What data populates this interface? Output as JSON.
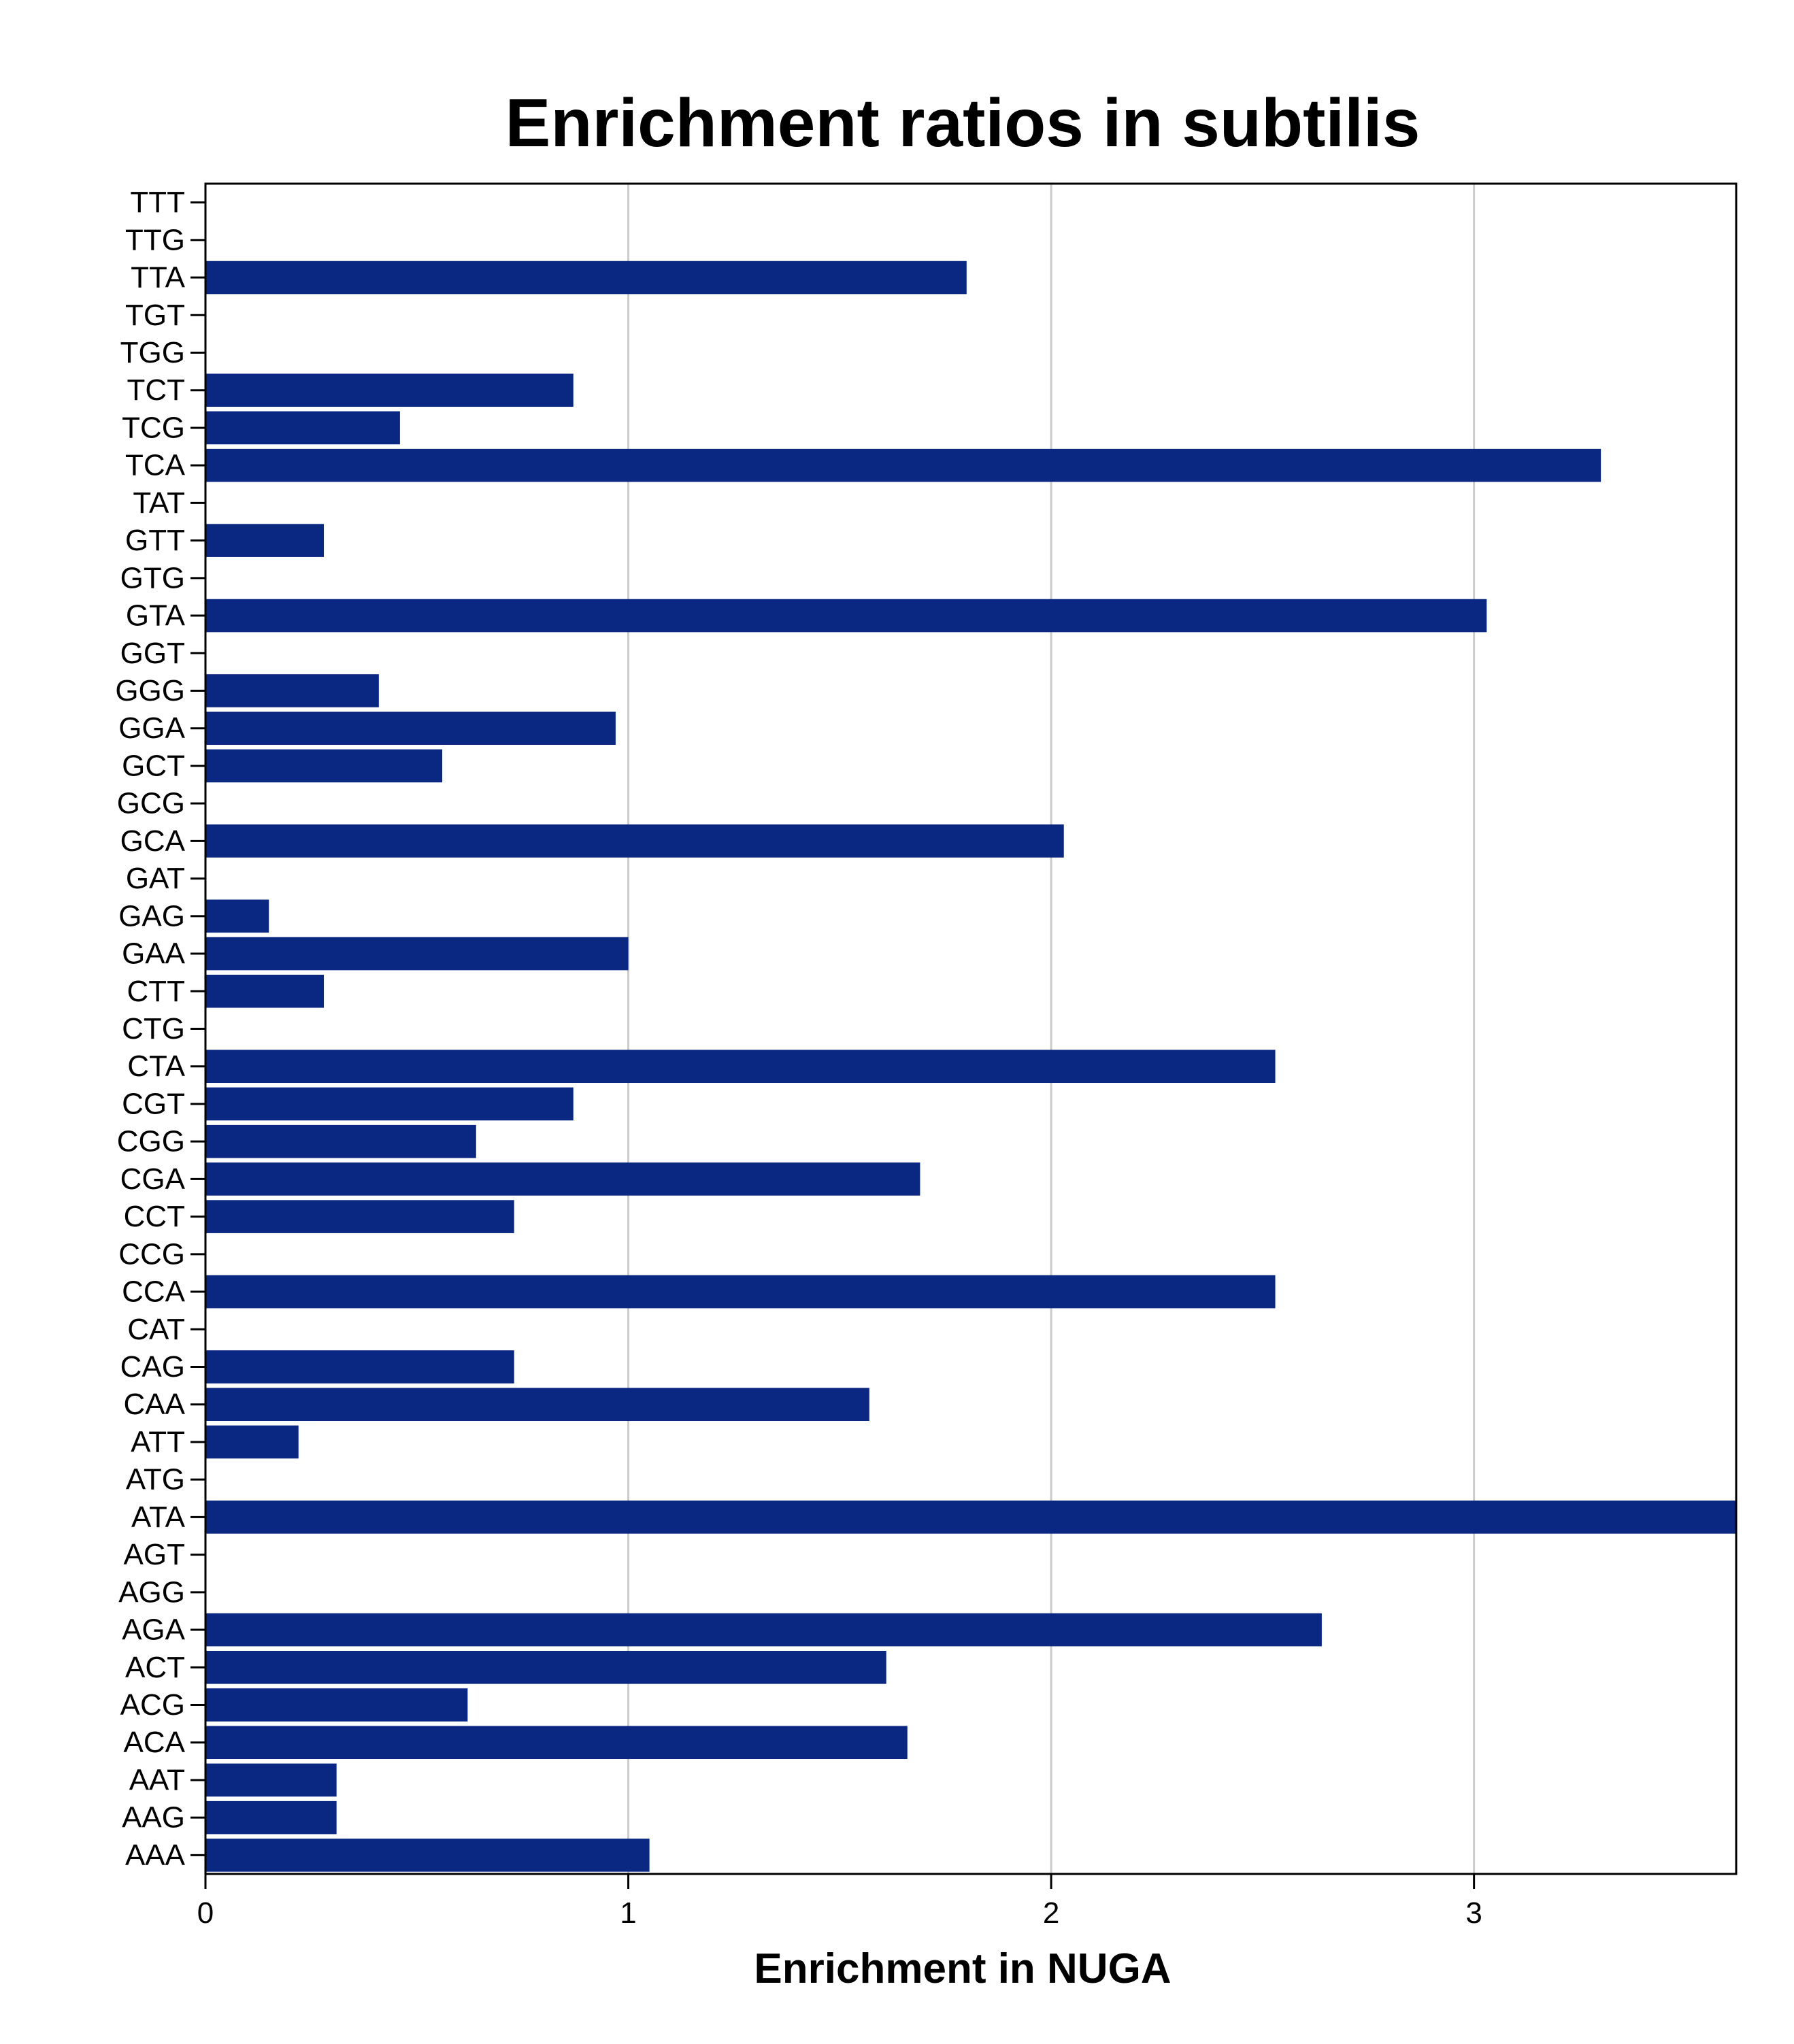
{
  "chart_data": {
    "type": "bar",
    "orientation": "horizontal",
    "title": "Enrichment ratios in subtilis",
    "xlabel": "Enrichment in NUGA",
    "ylabel": "",
    "xlim": [
      0,
      3.62
    ],
    "xticks": [
      0,
      1,
      2,
      3
    ],
    "grid": "vertical",
    "bar_color": "#0A2781",
    "categories": [
      "TTT",
      "TTG",
      "TTA",
      "TGT",
      "TGG",
      "TCT",
      "TCG",
      "TCA",
      "TAT",
      "GTT",
      "GTG",
      "GTA",
      "GGT",
      "GGG",
      "GGA",
      "GCT",
      "GCG",
      "GCA",
      "GAT",
      "GAG",
      "GAA",
      "CTT",
      "CTG",
      "CTA",
      "CGT",
      "CGG",
      "CGA",
      "CCT",
      "CCG",
      "CCA",
      "CAT",
      "CAG",
      "CAA",
      "ATT",
      "ATG",
      "ATA",
      "AGT",
      "AGG",
      "AGA",
      "ACT",
      "ACG",
      "ACA",
      "AAT",
      "AAG",
      "AAA"
    ],
    "values": [
      0,
      0,
      1.8,
      0,
      0,
      0.87,
      0.46,
      3.3,
      0,
      0.28,
      0,
      3.03,
      0,
      0.41,
      0.97,
      0.56,
      0,
      2.03,
      0,
      0.15,
      1.0,
      0.28,
      0,
      2.53,
      0.87,
      0.64,
      1.69,
      0.73,
      0,
      2.53,
      0,
      0.73,
      1.57,
      0.22,
      0,
      3.7,
      0,
      0,
      2.64,
      1.61,
      0.62,
      1.66,
      0.31,
      0.31,
      1.05
    ]
  }
}
